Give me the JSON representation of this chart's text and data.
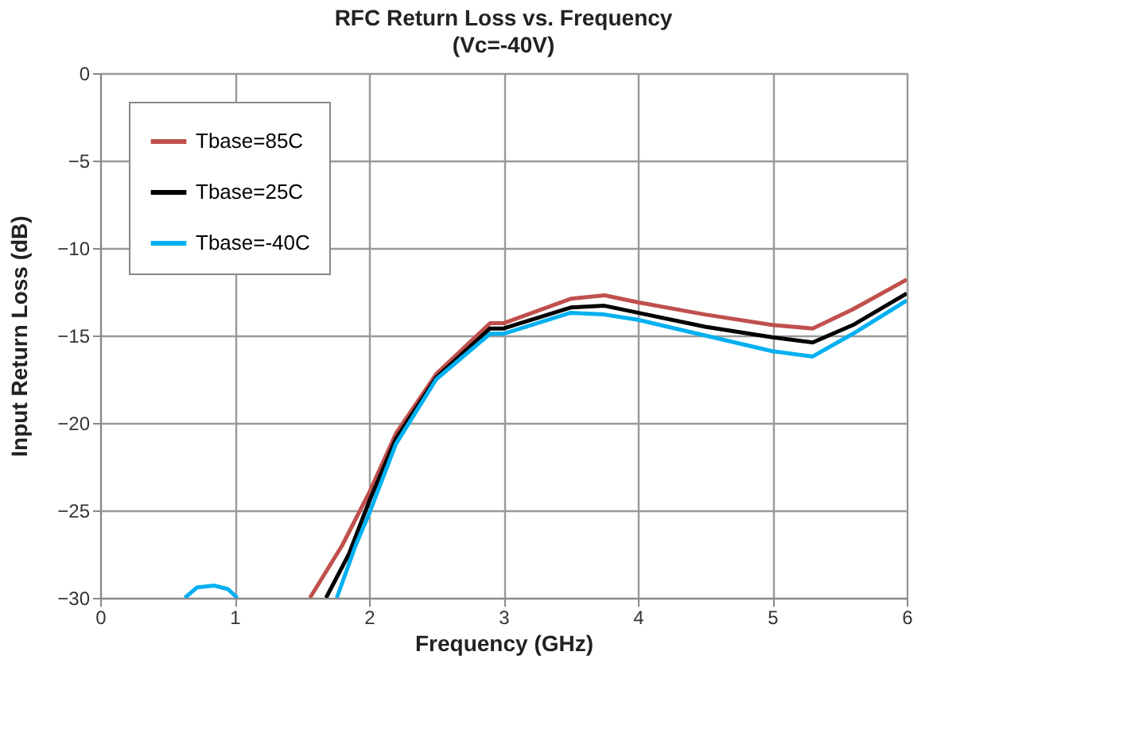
{
  "chart_data": {
    "type": "line",
    "title": "RFC Return Loss vs. Frequency",
    "subtitle": "(Vc=-40V)",
    "xlabel": "Frequency (GHz)",
    "ylabel": "Input Return Loss (dB)",
    "xlim": [
      0,
      6
    ],
    "xticks": [
      0,
      1,
      2,
      3,
      4,
      5,
      6
    ],
    "ylim": [
      -30,
      0
    ],
    "yticks": [
      -30,
      -25,
      -20,
      -15,
      -10,
      -5,
      0
    ],
    "grid": true,
    "legend": "top left",
    "line_style": "solid",
    "marker": "none",
    "series": [
      {
        "name": "Tbase=85C",
        "color": "#c0504d",
        "x": [
          1.56,
          1.8,
          2.0,
          2.2,
          2.5,
          2.9,
          3.0,
          3.5,
          3.75,
          4.0,
          4.5,
          5.0,
          5.3,
          5.6,
          6.0
        ],
        "values": [
          -30,
          -27,
          -24,
          -20.6,
          -17.2,
          -14.3,
          -14.3,
          -12.9,
          -12.7,
          -13.1,
          -13.8,
          -14.4,
          -14.6,
          -13.5,
          -11.8
        ]
      },
      {
        "name": "Tbase=25C",
        "color": "#000000",
        "x": [
          1.68,
          1.85,
          2.0,
          2.2,
          2.5,
          2.9,
          3.0,
          3.5,
          3.75,
          4.0,
          4.5,
          5.0,
          5.3,
          5.6,
          6.0
        ],
        "values": [
          -30,
          -27.5,
          -24.5,
          -20.9,
          -17.4,
          -14.6,
          -14.6,
          -13.4,
          -13.3,
          -13.7,
          -14.5,
          -15.1,
          -15.4,
          -14.4,
          -12.6
        ]
      },
      {
        "name": "Tbase=-40C",
        "color": "#00b0f0",
        "x": [
          0.63,
          0.72,
          0.85,
          0.95,
          1.02,
          1.4,
          1.76,
          1.9,
          2.0,
          2.2,
          2.5,
          2.9,
          3.0,
          3.5,
          3.75,
          4.0,
          4.5,
          5.0,
          5.3,
          5.6,
          6.0
        ],
        "values": [
          -30,
          -29.4,
          -29.3,
          -29.5,
          -30,
          null,
          -30,
          -27,
          -25.2,
          -21.2,
          -17.5,
          -14.9,
          -14.9,
          -13.7,
          -13.8,
          -14.1,
          -15.0,
          -15.9,
          -16.2,
          -14.9,
          -13.0
        ]
      }
    ]
  }
}
